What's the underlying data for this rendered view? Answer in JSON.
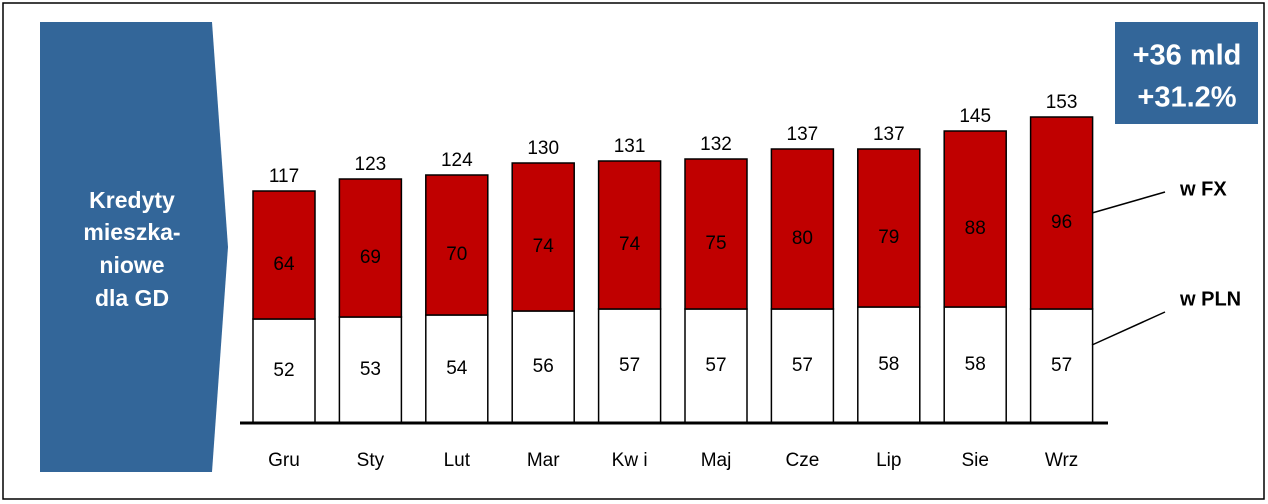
{
  "chart_data": {
    "type": "stacked_bar",
    "categories": [
      "Gru",
      "Sty",
      "Lut",
      "Mar",
      "Kw i",
      "Maj",
      "Cze",
      "Lip",
      "Sie",
      "Wrz"
    ],
    "series": [
      {
        "name": "w PLN",
        "color": "#ffffff",
        "values": [
          52,
          53,
          54,
          56,
          57,
          57,
          57,
          58,
          58,
          57
        ]
      },
      {
        "name": "w FX",
        "color": "#c00000",
        "values": [
          64,
          69,
          70,
          74,
          74,
          75,
          80,
          79,
          88,
          96
        ]
      }
    ],
    "totals": [
      117,
      123,
      124,
      130,
      131,
      132,
      137,
      137,
      145,
      153
    ],
    "side_label": [
      "Kredyty",
      "mieszka-",
      "niowe",
      "dla GD"
    ],
    "annotation": [
      "+36 mld",
      "+31.2%"
    ]
  }
}
